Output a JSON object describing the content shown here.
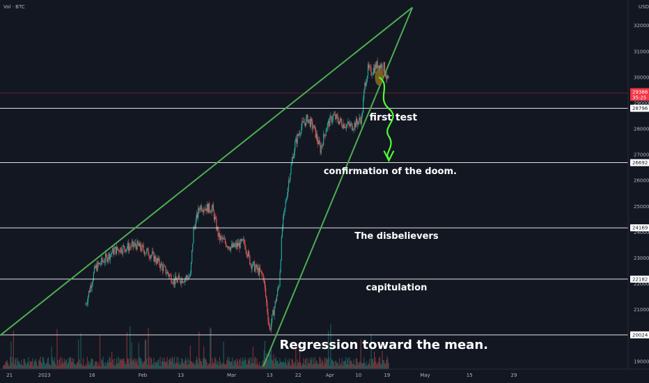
{
  "header": {
    "symbol": "Vol · BTC",
    "axis_unit": "USD"
  },
  "colors": {
    "background": "#131722",
    "up": "#26a69a",
    "down": "#ef5350",
    "trendline": "#4caf50",
    "hline": "#ffffff",
    "current_price": "#f23645",
    "arrow": "#4cff33",
    "marker": "#8a6d1c"
  },
  "chart_data": {
    "type": "candlestick",
    "y_range": [
      18700,
      32800
    ],
    "y_ticks": [
      19000,
      20000,
      21000,
      22000,
      23000,
      24000,
      25000,
      26000,
      27000,
      28000,
      29000,
      30000,
      31000,
      32000
    ],
    "x_ticks": [
      {
        "label": "21",
        "day": 0
      },
      {
        "label": "2023",
        "day": 11
      },
      {
        "label": "16",
        "day": 26
      },
      {
        "label": "Feb",
        "day": 42
      },
      {
        "label": "13",
        "day": 54
      },
      {
        "label": "Mar",
        "day": 70
      },
      {
        "label": "13",
        "day": 82
      },
      {
        "label": "22",
        "day": 91
      },
      {
        "label": "Apr",
        "day": 101
      },
      {
        "label": "10",
        "day": 110
      },
      {
        "label": "19",
        "day": 119
      },
      {
        "label": "May",
        "day": 131
      },
      {
        "label": "15",
        "day": 145
      },
      {
        "label": "29",
        "day": 159
      }
    ],
    "x_range_days": [
      -3,
      195
    ],
    "path_points": [
      [
        -3,
        19200
      ],
      [
        12,
        19500
      ],
      [
        24,
        21200
      ],
      [
        27,
        22600
      ],
      [
        33,
        23300
      ],
      [
        40,
        23500
      ],
      [
        45,
        23100
      ],
      [
        52,
        22100
      ],
      [
        57,
        22300
      ],
      [
        58,
        24100
      ],
      [
        60,
        25000
      ],
      [
        64,
        24900
      ],
      [
        66,
        23800
      ],
      [
        70,
        23400
      ],
      [
        74,
        23600
      ],
      [
        76,
        22800
      ],
      [
        80,
        22300
      ],
      [
        82,
        20200
      ],
      [
        83,
        20800
      ],
      [
        85,
        22000
      ],
      [
        86,
        24200
      ],
      [
        88,
        26000
      ],
      [
        90,
        27400
      ],
      [
        92,
        28100
      ],
      [
        94,
        28400
      ],
      [
        96,
        28000
      ],
      [
        98,
        27200
      ],
      [
        100,
        28100
      ],
      [
        102,
        28500
      ],
      [
        105,
        28200
      ],
      [
        108,
        28100
      ],
      [
        111,
        28400
      ],
      [
        112,
        29700
      ],
      [
        113,
        30300
      ],
      [
        114,
        30200
      ],
      [
        116,
        30500
      ],
      [
        118,
        30400
      ],
      [
        119,
        29900
      ]
    ],
    "current_price": {
      "value": 29386,
      "label": "29386",
      "countdown": "35:25"
    },
    "horizontal_levels": [
      {
        "value": 28796,
        "label": "28796"
      },
      {
        "value": 26692,
        "label": "26692"
      },
      {
        "value": 24169,
        "label": "24169"
      },
      {
        "value": 22182,
        "label": "22182"
      },
      {
        "value": 20024,
        "label": "20024"
      }
    ],
    "trendlines": [
      {
        "from": [
          -3,
          20000
        ],
        "to": [
          127,
          32700
        ]
      },
      {
        "from": [
          80,
          18800
        ],
        "to": [
          127,
          32700
        ]
      }
    ],
    "annotations": [
      {
        "text": "first test",
        "day": 121,
        "value": 28700,
        "size": 14
      },
      {
        "text": "confirmation of the doom.",
        "day": 120,
        "value": 26600,
        "size": 13
      },
      {
        "text": "The disbelievers",
        "day": 122,
        "value": 24100,
        "size": 13
      },
      {
        "text": "capitulation",
        "day": 122,
        "value": 22100,
        "size": 13
      },
      {
        "text": "Regression toward the mean.",
        "day": 118,
        "value": 19950,
        "size": 18
      }
    ]
  }
}
